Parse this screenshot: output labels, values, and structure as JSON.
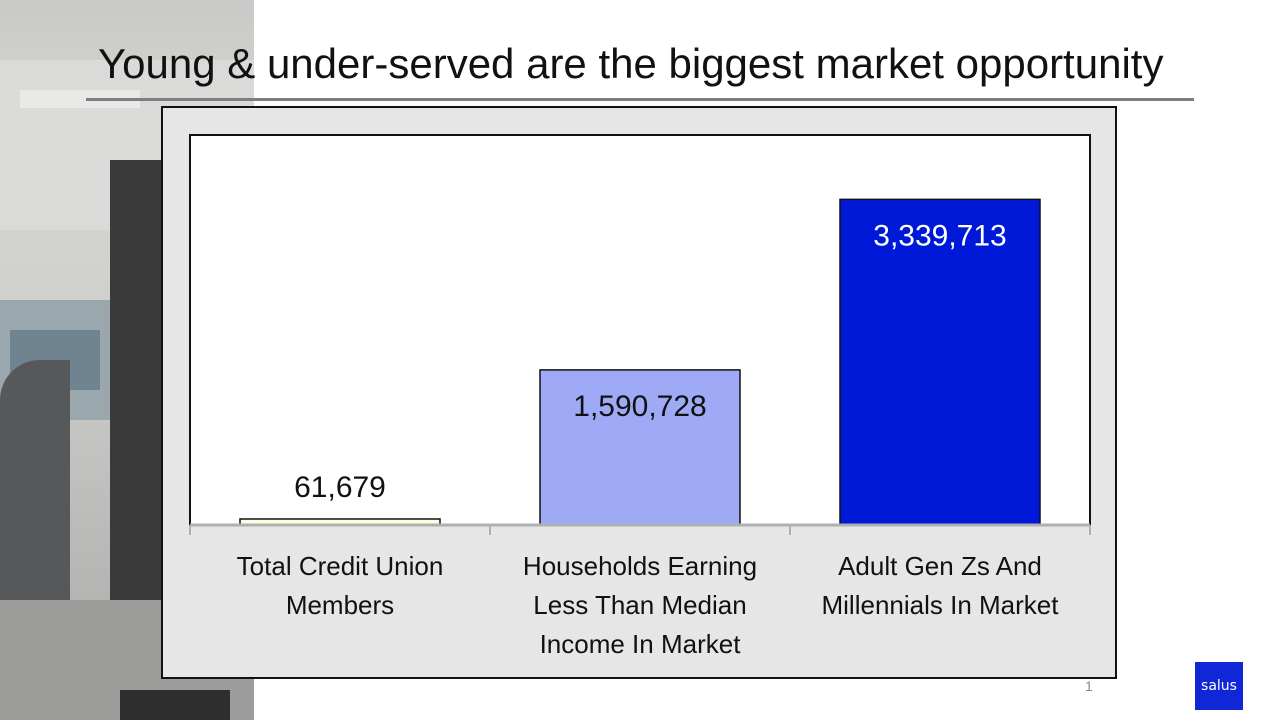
{
  "slide": {
    "title": "Young & under-served are the biggest market opportunity",
    "page_number": "1",
    "logo_text": "salus"
  },
  "chart_data": {
    "type": "bar",
    "categories": [
      [
        "Total Credit Union",
        "Members"
      ],
      [
        "Households Earning",
        "Less Than Median",
        "Income In Market"
      ],
      [
        "Adult Gen Zs And",
        "Millennials In Market"
      ]
    ],
    "values": [
      61679,
      1590728,
      3339713
    ],
    "data_labels": [
      "61,679",
      "1,590,728",
      "3,339,713"
    ],
    "bar_colors": [
      "#fdfde6",
      "#9faaf7",
      "#0019d9"
    ],
    "label_colors": [
      "#111111",
      "#111111",
      "#ffffff"
    ],
    "ylim": [
      0,
      4000000
    ],
    "title": "",
    "xlabel": "",
    "ylabel": "",
    "grid": false,
    "legend": "none"
  }
}
